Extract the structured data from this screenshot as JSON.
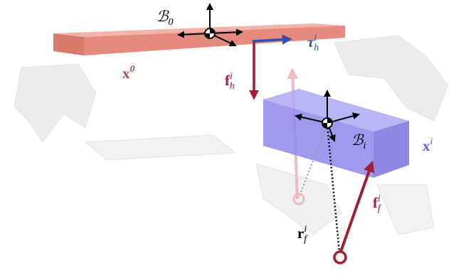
{
  "labels": [
    {
      "symbol": "ℬ",
      "sub": "0"
    },
    {
      "symbol": "x",
      "sup": "0"
    },
    {
      "symbol": "f",
      "sub": "h",
      "sup": "i"
    },
    {
      "symbol": "τ",
      "sub": "h",
      "sup": "i"
    },
    {
      "symbol": "ℬ",
      "sub": "i"
    },
    {
      "symbol": "x",
      "sup": "i"
    },
    {
      "symbol": "f",
      "sub": "f",
      "sup": "i"
    },
    {
      "symbol": "r",
      "sub": "f",
      "sup": "i"
    }
  ]
}
